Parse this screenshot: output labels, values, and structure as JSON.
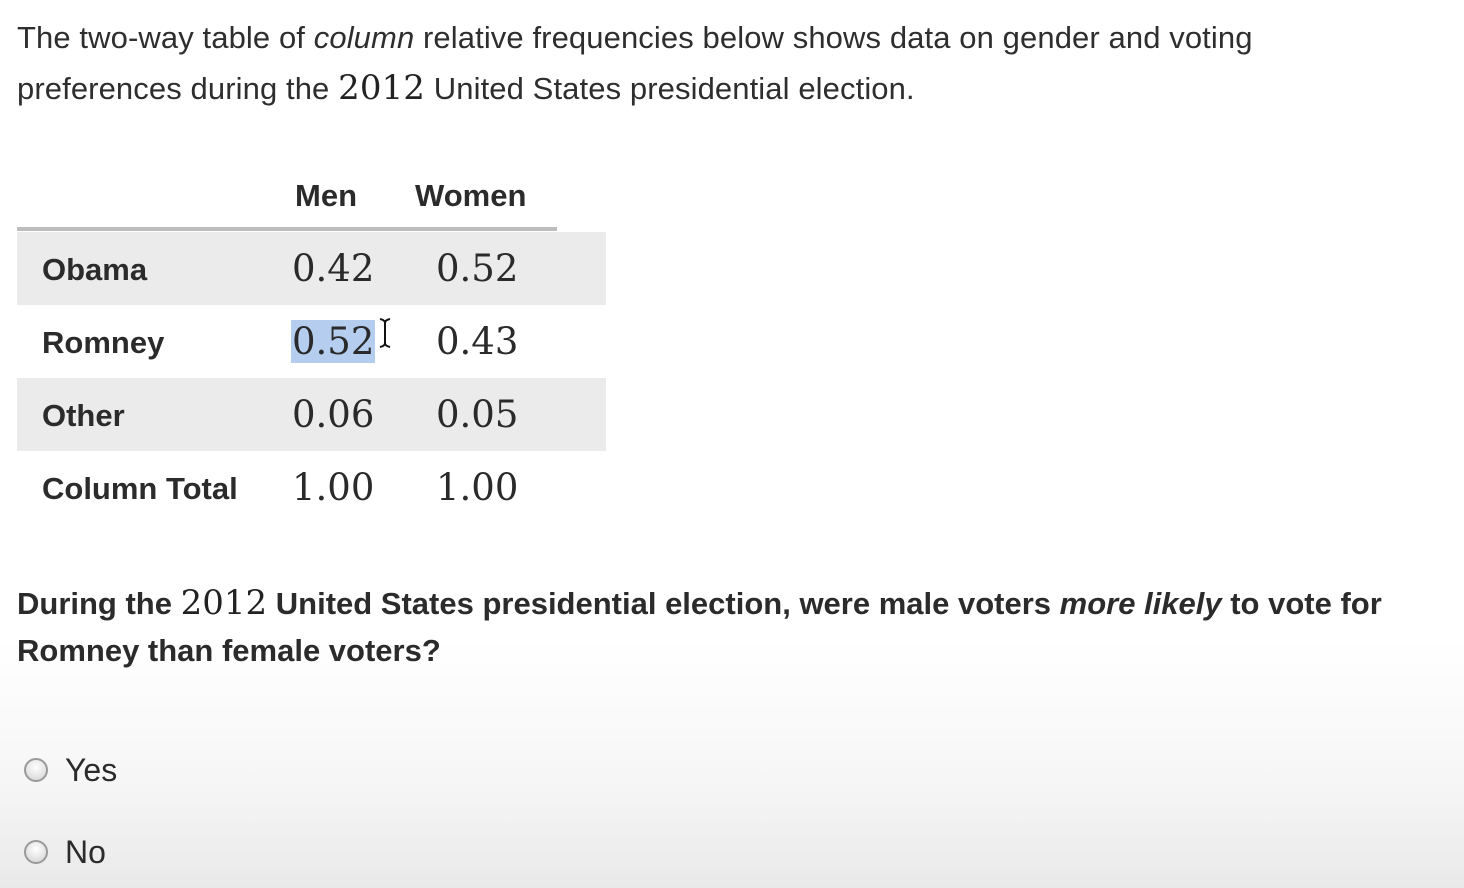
{
  "intro": {
    "part1": "The two-way table of ",
    "italic": "column",
    "part2": " relative frequencies below shows data on gender and voting preferences during the ",
    "year": "2012",
    "part3": " United States presidential election."
  },
  "table": {
    "columns": [
      "Men",
      "Women"
    ],
    "rows": [
      {
        "label": "Obama",
        "men": "0.42",
        "women": "0.52"
      },
      {
        "label": "Romney",
        "men": "0.52",
        "women": "0.43"
      },
      {
        "label": "Other",
        "men": "0.06",
        "women": "0.05"
      },
      {
        "label": "Column Total",
        "men": "1.00",
        "women": "1.00"
      }
    ]
  },
  "question": {
    "part1": "During the ",
    "year": "2012",
    "part2": " United States presidential election, were male voters ",
    "italic": "more likely",
    "part3": " to vote for Romney than female voters?"
  },
  "options": [
    {
      "label": "Yes",
      "selected": false
    },
    {
      "label": "No",
      "selected": false
    }
  ],
  "colors": {
    "row_shade": "#ebebeb",
    "selection": "#b5cdee",
    "text": "#2b2b2b"
  }
}
